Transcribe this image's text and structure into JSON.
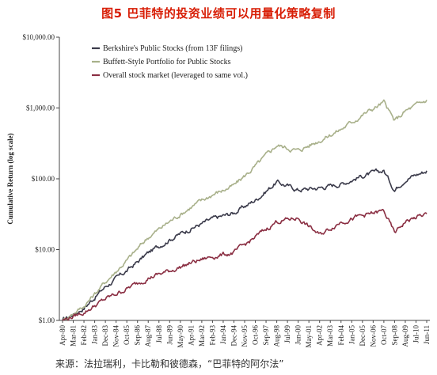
{
  "figure_title": "图5  巴菲特的投资业绩可以用量化策略复制",
  "source_note": "来源：法拉瑞利，卡比勒和彼德森，“巴菲特的阿尔法”",
  "chart_data": {
    "type": "line",
    "ylabel": "Cumulative Return (log scale)",
    "yscale": "log",
    "ylim": [
      1,
      10000
    ],
    "y_ticks": [
      1,
      10,
      100,
      1000,
      10000
    ],
    "y_tick_labels": [
      "$1.00",
      "$10.00",
      "$100.00",
      "$1,000.00",
      "$10,000.00"
    ],
    "x_ticks": [
      "Apr-80",
      "Mar-81",
      "Feb-82",
      "Jan-83",
      "Dec-83",
      "Nov-84",
      "Oct-85",
      "Sep-86",
      "Aug-87",
      "Jul-88",
      "Jun-89",
      "May-90",
      "Apr-91",
      "Mar-92",
      "Feb-93",
      "Jan-94",
      "Dec-94",
      "Nov-95",
      "Oct-96",
      "Sep-97",
      "Aug-98",
      "Jul-99",
      "Jun-00",
      "May-01",
      "Apr-02",
      "Mar-03",
      "Feb-04",
      "Jan-05",
      "Dec-05",
      "Nov-06",
      "Oct-07",
      "Sep-08",
      "Aug-09",
      "Jul-10",
      "Jun-11"
    ],
    "legend_position": "top-left",
    "grid": false,
    "series": [
      {
        "name": "Berkshire's Public Stocks (from 13F filings)",
        "color": "#3a3a4a",
        "x": [
          "Apr-80",
          "Feb-82",
          "Dec-83",
          "Oct-85",
          "Aug-87",
          "Jun-89",
          "Apr-91",
          "Feb-93",
          "Dec-94",
          "Oct-96",
          "Aug-98",
          "Jun-00",
          "Apr-02",
          "Feb-04",
          "Dec-05",
          "Oct-07",
          "Sep-08",
          "Aug-09",
          "Jun-11"
        ],
        "values": [
          1,
          1.5,
          3,
          5,
          9,
          14,
          20,
          27,
          33,
          50,
          90,
          70,
          75,
          85,
          110,
          130,
          70,
          100,
          130
        ]
      },
      {
        "name": "Buffett-Style Portfolio for Public Stocks",
        "color": "#a8b08a",
        "x": [
          "Apr-80",
          "Feb-82",
          "Dec-83",
          "Oct-85",
          "Aug-87",
          "Jun-89",
          "Apr-91",
          "Feb-93",
          "Dec-94",
          "Oct-96",
          "Aug-98",
          "Jun-00",
          "Apr-02",
          "Feb-04",
          "Dec-05",
          "Oct-07",
          "Sep-08",
          "Aug-09",
          "Jun-11"
        ],
        "values": [
          1,
          1.6,
          3.5,
          7,
          15,
          25,
          40,
          60,
          80,
          150,
          300,
          250,
          350,
          500,
          800,
          1200,
          650,
          900,
          1300
        ]
      },
      {
        "name": "Overall stock market (leveraged to same vol.)",
        "color": "#8a2e42",
        "x": [
          "Apr-80",
          "Feb-82",
          "Dec-83",
          "Oct-85",
          "Aug-87",
          "Jun-89",
          "Apr-91",
          "Feb-93",
          "Dec-94",
          "Oct-96",
          "Aug-98",
          "Jun-00",
          "Apr-02",
          "Feb-04",
          "Dec-05",
          "Oct-07",
          "Sep-08",
          "Aug-09",
          "Jun-11"
        ],
        "values": [
          1,
          1.3,
          2,
          2.8,
          4,
          5,
          6.5,
          8,
          9,
          15,
          25,
          28,
          16,
          25,
          30,
          35,
          17,
          25,
          32
        ]
      }
    ]
  }
}
